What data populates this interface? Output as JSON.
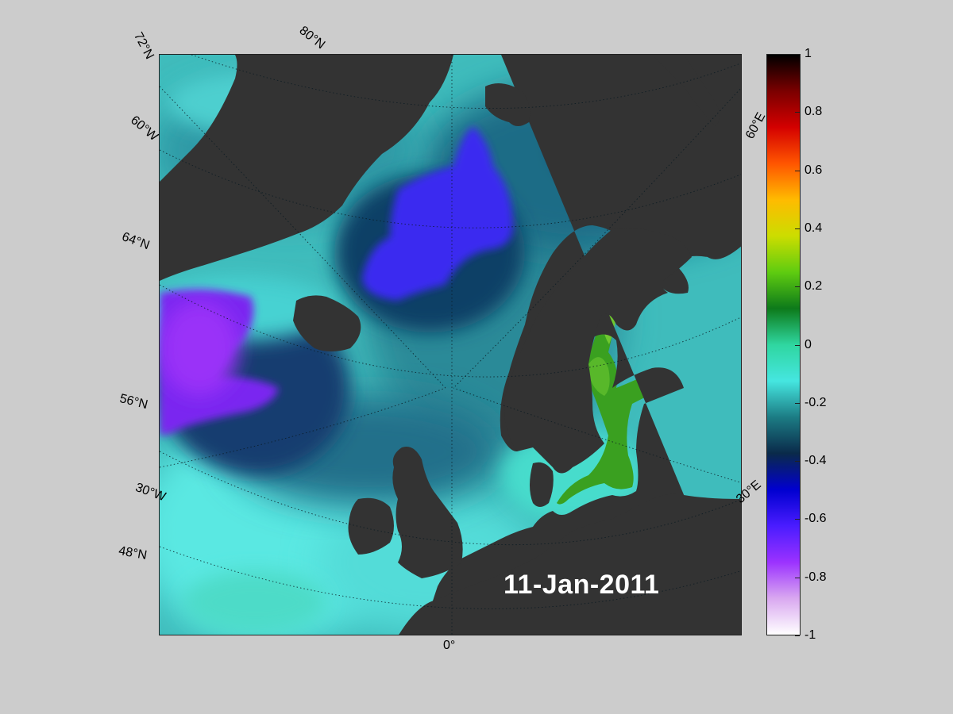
{
  "map": {
    "date": "11-Jan-2011",
    "latitude_labels": [
      "72°N",
      "80°N",
      "64°N",
      "56°N",
      "48°N"
    ],
    "longitude_labels": [
      "60°W",
      "30°W",
      "0°",
      "30°E",
      "60°E"
    ]
  },
  "colorbar": {
    "min": -1,
    "max": 1,
    "ticks": [
      "1",
      "0.8",
      "0.6",
      "0.4",
      "0.2",
      "0",
      "-0.2",
      "-0.4",
      "-0.6",
      "-0.8",
      "-1"
    ],
    "colors_bottom_to_top": [
      "#ffffff",
      "#d9a8f0",
      "#9b32ff",
      "#4a1cff",
      "#0000d0",
      "#0a2a4a",
      "#1c7c84",
      "#45e6e0",
      "#2fd6a0",
      "#0d7a1a",
      "#5fcc10",
      "#ccdd00",
      "#ffbb00",
      "#ff5500",
      "#d40000",
      "#7a0000",
      "#000000"
    ]
  }
}
